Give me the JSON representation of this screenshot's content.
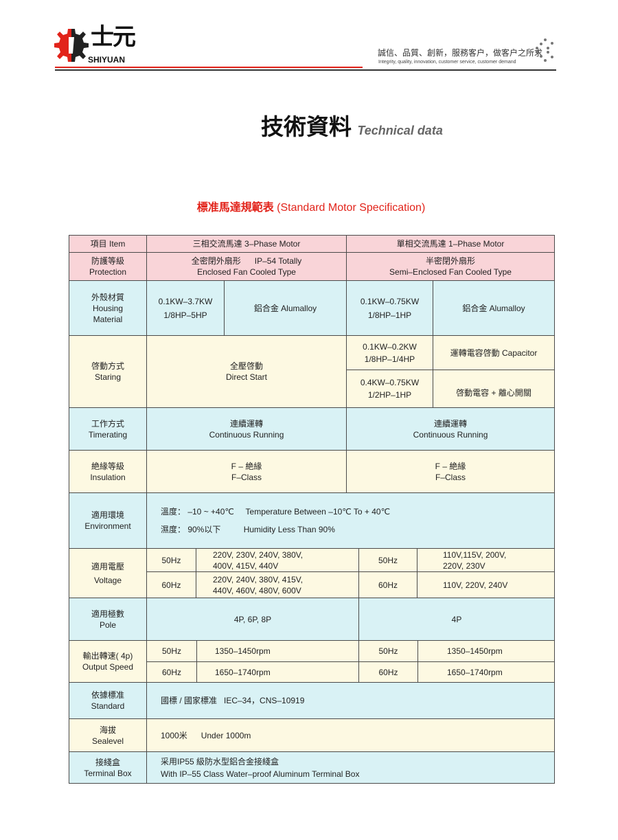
{
  "header": {
    "logo_cn": "士元",
    "logo_en": "SHIYUAN",
    "slogan_cn": "誠信、品質、創新，服務客户，做客户之所求",
    "slogan_en": "Integrity, quality, innovation, customer service, customer demand"
  },
  "title": {
    "cn": "技術資料",
    "en": "Technical data"
  },
  "subtitle": {
    "cn": "標准馬達規範表",
    "en": "(Standard Motor Specification)"
  },
  "colors": {
    "accent": "#e2231a",
    "header_row": "#f9d4d8",
    "cyan_row": "#d9f2f5",
    "cream_row": "#fdf9e2"
  },
  "table": {
    "head": {
      "item": "項目 Item",
      "three": "三相交流馬達 3–Phase Motor",
      "one": "單相交流馬達  1–Phase Motor"
    },
    "protection": {
      "label_cn": "防護等級",
      "label_en": "Protection",
      "three_1": "全密閉外扇形      IP–54 Totally",
      "three_2": "Enclosed Fan Cooled Type",
      "one_1": "半密閉外扇形",
      "one_2": "Semi–Enclosed Fan Cooled Type"
    },
    "housing": {
      "label_cn": "外殼材質",
      "label_en1": "Housing",
      "label_en2": "Material",
      "three_kw": "0.1KW–3.7KW",
      "three_hp": "1/8HP–5HP",
      "three_mat": "鋁合金  Alumalloy",
      "one_kw": "0.1KW–0.75KW",
      "one_hp": "1/8HP–1HP",
      "one_mat": "鋁合金  Alumalloy"
    },
    "starting": {
      "label_cn": "啓動方式",
      "label_en": "Staring",
      "three_cn": "全壓啓動",
      "three_en": "Direct Start",
      "one_a_kw": "0.1KW–0.2KW",
      "one_a_hp": "1/8HP–1/4HP",
      "one_a_type": "運轉電容啓動  Capacitor",
      "one_b_kw": "0.4KW–0.75KW",
      "one_b_hp": "1/2HP–1HP",
      "one_b_type": "啓動電容 + 離心開關"
    },
    "timerating": {
      "label_cn": "工作方式",
      "label_en": "Timerating",
      "three_cn": "連續運轉",
      "three_en": "Continuous Running",
      "one_cn": "連續運轉",
      "one_en": "Continuous Running"
    },
    "insulation": {
      "label_cn": "絶緣等級",
      "label_en": "Insulation",
      "three_cn": "F – 絶緣",
      "three_en": "F–Class",
      "one_cn": "F – 絶緣",
      "one_en": "F–Class"
    },
    "environment": {
      "label_cn": "適用環境",
      "label_en": "Environment",
      "line1": "溫度： –10 ~ +40℃     Temperature Between –10℃ To + 40℃",
      "line2": "濕度： 90%以下          Humidity Less Than 90%"
    },
    "voltage": {
      "label_cn": "適用電壓",
      "label_en": "Voltage",
      "hz50": "50Hz",
      "hz60": "60Hz",
      "three_50_1": "220V, 230V, 240V, 380V,",
      "three_50_2": "400V, 415V, 440V",
      "three_60_1": "220V, 240V, 380V, 415V,",
      "three_60_2": "440V, 460V, 480V, 600V",
      "one_50_1": "110V,115V, 200V,",
      "one_50_2": "220V, 230V",
      "one_60": "110V, 220V, 240V"
    },
    "pole": {
      "label_cn": "適用極數",
      "label_en": "Pole",
      "three": "4P, 6P, 8P",
      "one": "4P"
    },
    "speed": {
      "label_cn": "輸出轉速( 4p)",
      "label_en": "Output Speed",
      "hz50": "50Hz",
      "hz60": "60Hz",
      "rpm50": "1350–1450rpm",
      "rpm60": "1650–1740rpm"
    },
    "standard": {
      "label_cn": "依據標准",
      "label_en": "Standard",
      "value": "國標 / 國家標准   IEC–34，CNS–10919"
    },
    "sealevel": {
      "label_cn": "海拔",
      "label_en": "Sealevel",
      "value": "1000米      Under 1000m"
    },
    "terminal": {
      "label_cn": "接綫盒",
      "label_en": "Terminal Box",
      "line1": "采用IP55 級防水型鋁合金接綫盒",
      "line2": "With IP–55 Class Water–proof Aluminum Terminal Box"
    }
  }
}
